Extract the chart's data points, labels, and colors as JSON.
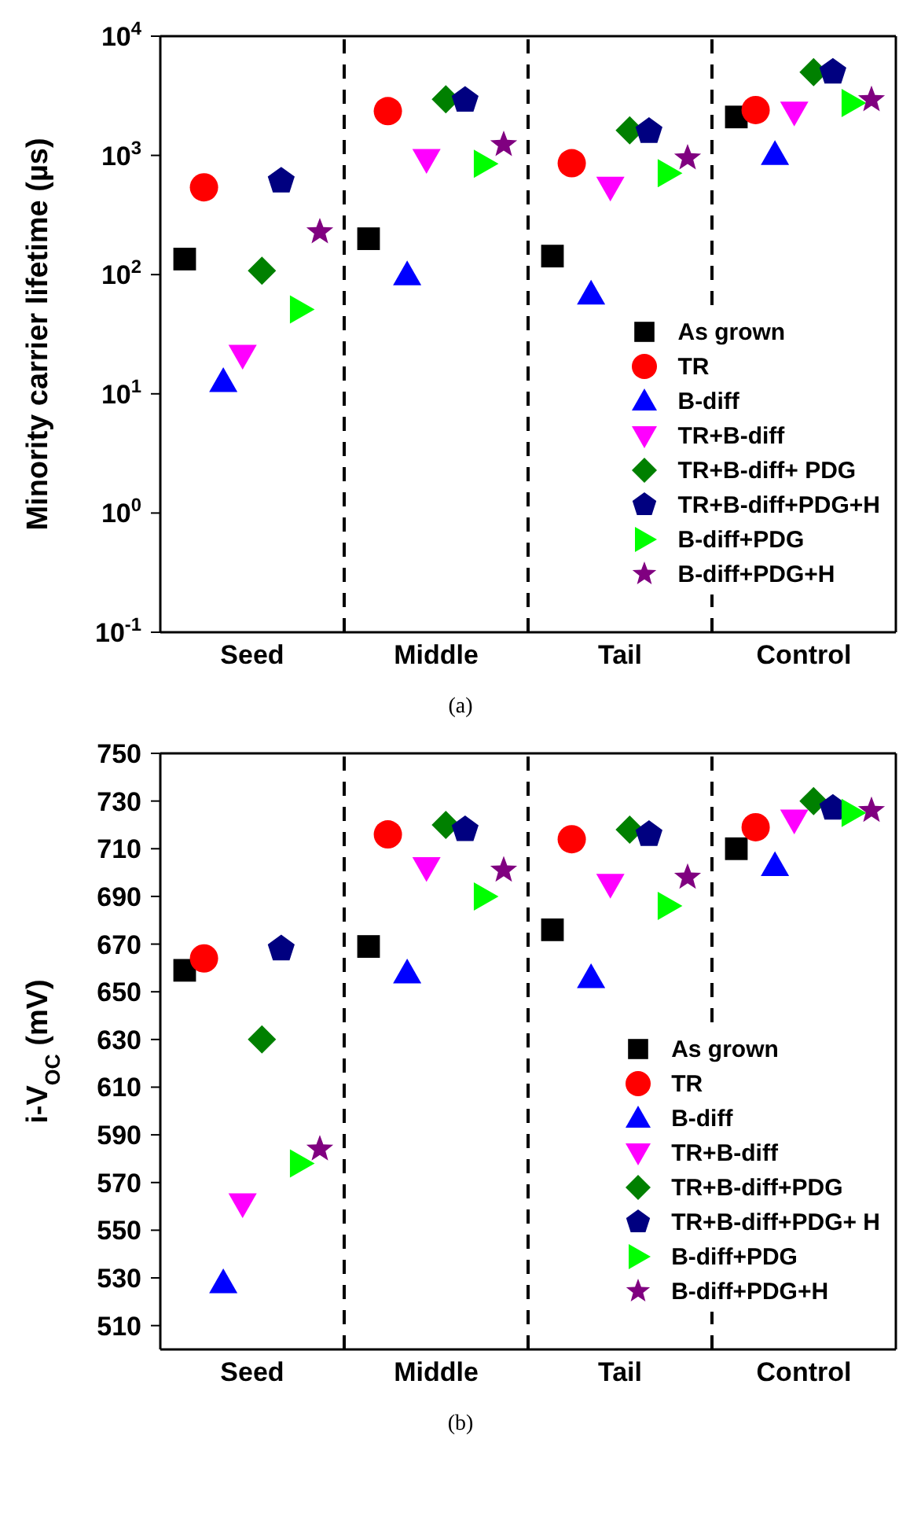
{
  "chart_data": [
    {
      "type": "scatter",
      "ylabel": "Minority carrier lifetime (µs)",
      "categories": [
        "Seed",
        "Middle",
        "Tail",
        "Control"
      ],
      "log": "y",
      "ylim": [
        0.1,
        10000
      ],
      "yticks": [
        {
          "value": 0.1,
          "label": "10$^{-1}$"
        },
        {
          "value": 1,
          "label": "10$^{0}$"
        },
        {
          "value": 10,
          "label": "10$^{1}$"
        },
        {
          "value": 100,
          "label": "10$^{2}$"
        },
        {
          "value": 1000,
          "label": "10$^{3}$"
        },
        {
          "value": 10000,
          "label": "10$^{4}$"
        }
      ],
      "grid": "x",
      "legend": "bottom right",
      "annotations": [
        "(a)"
      ],
      "series": [
        {
          "name": "As grown",
          "color": "#000000",
          "marker": "square",
          "values": [
            135,
            200,
            143,
            2100
          ]
        },
        {
          "name": "TR",
          "color": "#ff0000",
          "marker": "circle",
          "values": [
            540,
            2350,
            860,
            2400
          ]
        },
        {
          "name": "B-diff",
          "color": "#0000ff",
          "marker": "triangle",
          "values": [
            12.7,
            100,
            69,
            1020
          ]
        },
        {
          "name": "TR+B-diff",
          "color": "#ff00ff",
          "marker": "triangle-down",
          "values": [
            21,
            920,
            540,
            2300
          ]
        },
        {
          "name": "TR+B-diff+ PDG",
          "color": "#008000",
          "marker": "diamond",
          "values": [
            108,
            2950,
            1620,
            5000
          ]
        },
        {
          "name": "TR+B-diff+PDG+H",
          "color": "#000080",
          "values": [
            610,
            2900,
            1590,
            5000
          ]
        },
        {
          "name": "B-diff+PDG",
          "color": "#00ff00",
          "marker": "triangle-right",
          "values": [
            51,
            850,
            710,
            2750
          ]
        },
        {
          "name": "B-diff+PDG+H",
          "color": "#800080",
          "marker": "star",
          "values": [
            228,
            1230,
            950,
            2930
          ]
        }
      ]
    },
    {
      "type": "scatter",
      "ylabel": "i-V$_{OC}$ (mV)",
      "categories": [
        "Seed",
        "Middle",
        "Tail",
        "Control"
      ],
      "ylim": [
        500,
        750
      ],
      "yticks": [
        510,
        530,
        550,
        570,
        590,
        610,
        630,
        650,
        670,
        690,
        710,
        730,
        750
      ],
      "grid": "x",
      "legend": "bottom right",
      "annotations": [
        "(b)"
      ],
      "series": [
        {
          "name": "As grown",
          "color": "#000000",
          "marker": "square",
          "values": [
            659,
            669,
            676,
            710
          ]
        },
        {
          "name": "TR",
          "color": "#ff0000",
          "marker": "circle",
          "values": [
            664,
            716,
            714,
            719
          ]
        },
        {
          "name": "B-diff",
          "color": "#0000ff",
          "marker": "triangle",
          "values": [
            528,
            658,
            656,
            703
          ]
        },
        {
          "name": "TR+B-diff",
          "color": "#ff00ff",
          "marker": "triangle-down",
          "values": [
            561,
            702,
            695,
            722
          ]
        },
        {
          "name": "TR+B-diff+PDG",
          "color": "#008000",
          "marker": "diamond",
          "values": [
            630,
            720,
            718,
            730
          ]
        },
        {
          "name": "TR+B-diff+PDG+ H",
          "color": "#000080",
          "values": [
            668,
            718,
            716,
            727
          ]
        },
        {
          "name": "B-diff+PDG",
          "color": "#00ff00",
          "marker": "triangle-right",
          "values": [
            578,
            690,
            686,
            725
          ]
        },
        {
          "name": "B-diff+PDG+H",
          "color": "#800080",
          "marker": "star",
          "values": [
            584,
            701,
            698,
            726
          ]
        }
      ]
    }
  ]
}
